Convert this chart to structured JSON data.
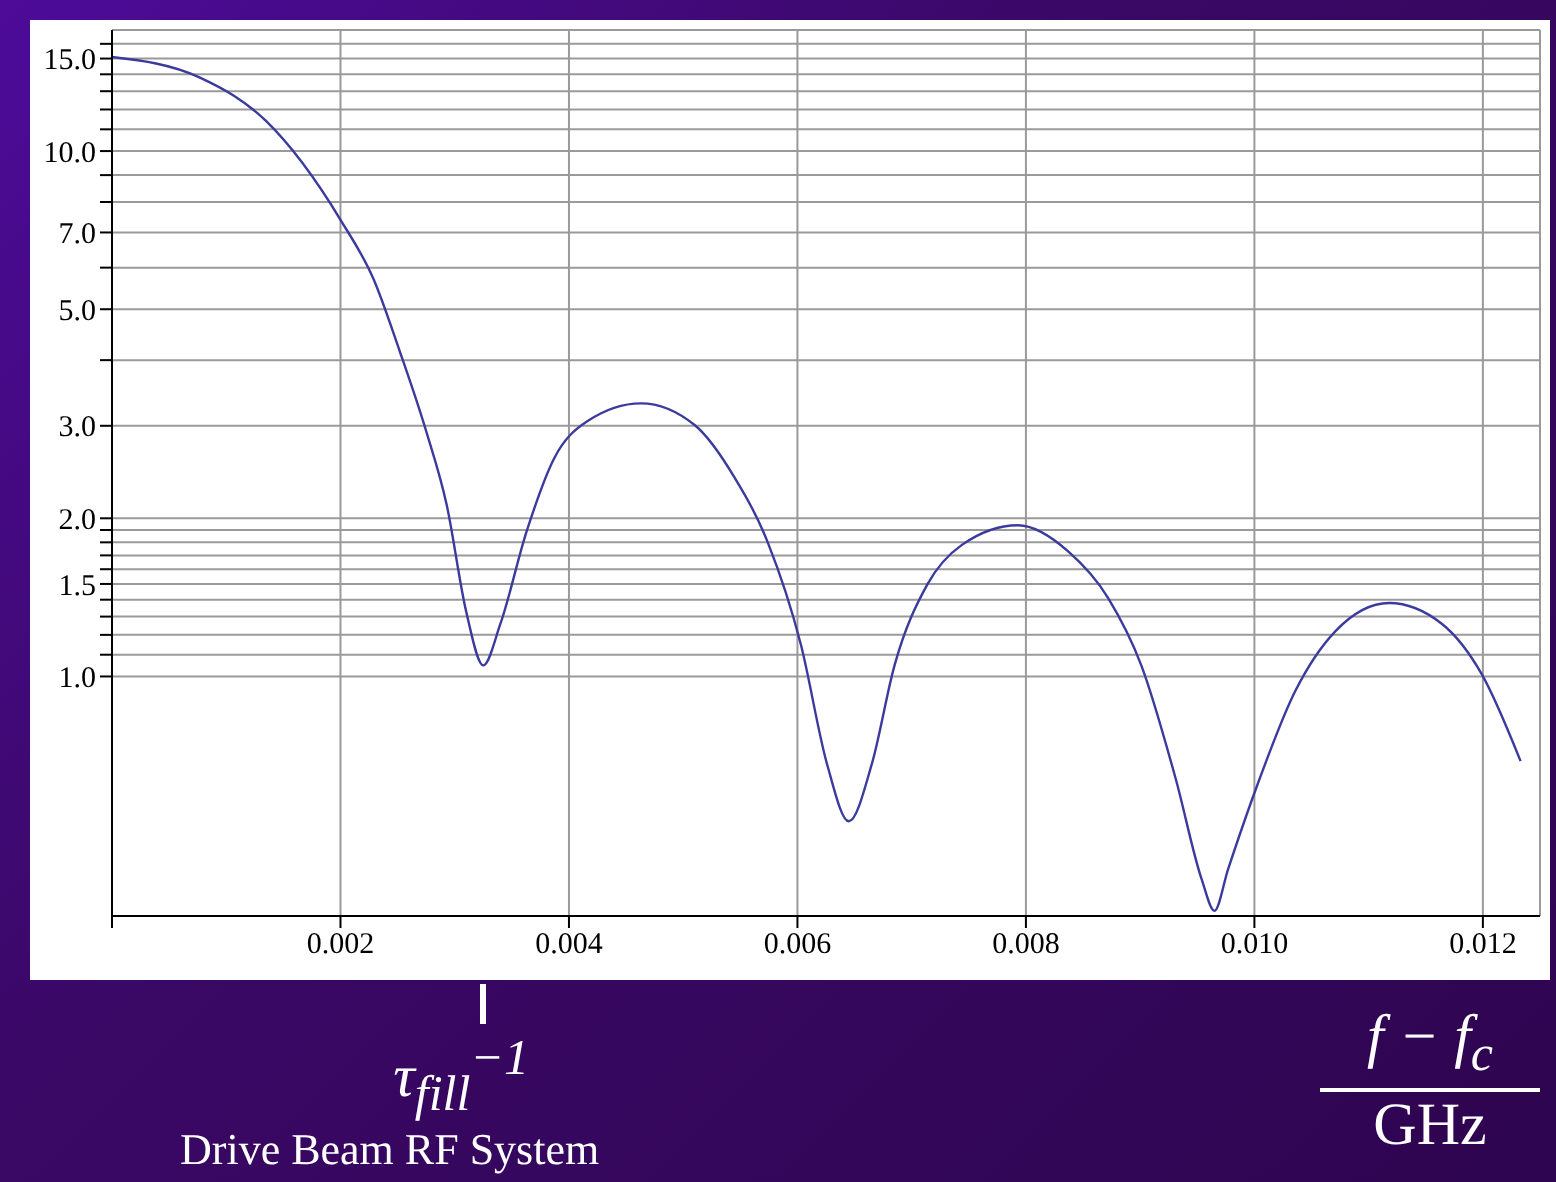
{
  "chart_data": {
    "type": "line",
    "xlabel": "f − f$_{c}$ GHz",
    "log": "y",
    "grid": true,
    "marker": "none",
    "line_style": "solid",
    "x": [
      0,
      0.00077,
      0.00135,
      0.002,
      0.00229,
      0.00252,
      0.00275,
      0.00293,
      0.0031,
      0.00325,
      0.0034,
      0.00363,
      0.00387,
      0.00416,
      0.00463,
      0.0051,
      0.00545,
      0.00574,
      0.00603,
      0.00626,
      0.00645,
      0.00665,
      0.00685,
      0.00714,
      0.00744,
      0.00793,
      0.00837,
      0.00872,
      0.00901,
      0.00931,
      0.00954,
      0.00965,
      0.00977,
      0.01,
      0.01036,
      0.01071,
      0.01118,
      0.01164,
      0.01199,
      0.01233
    ],
    "series": [
      {
        "color": "#3b3b9e",
        "values": [
          15.1,
          13.8,
          11.4,
          7.4,
          5.7,
          4.15,
          2.93,
          2.12,
          1.33,
          1.05,
          1.26,
          1.89,
          2.6,
          3.06,
          3.31,
          3.01,
          2.39,
          1.8,
          1.15,
          0.68,
          0.53,
          0.68,
          1.05,
          1.5,
          1.78,
          1.94,
          1.73,
          1.41,
          1.05,
          0.64,
          0.41,
          0.358,
          0.43,
          0.6,
          0.94,
          1.22,
          1.38,
          1.26,
          1.01,
          0.69
        ]
      }
    ],
    "xlim": [
      0,
      0.0125
    ],
    "xticks": [
      {
        "value": 0,
        "label": null
      },
      0.002,
      0.004,
      0.006,
      0.008,
      {
        "value": 0.01,
        "label": "0.010"
      },
      0.012
    ],
    "ylim": [
      0.35,
      17
    ],
    "yticks": [
      {
        "value": 1,
        "label": "1.0"
      },
      {
        "value": 1.1,
        "label": null
      },
      {
        "value": 1.2,
        "label": null
      },
      {
        "value": 1.3,
        "label": null
      },
      {
        "value": 1.4,
        "label": null
      },
      {
        "value": 1.5,
        "label": "1.5"
      },
      {
        "value": 1.6,
        "label": null
      },
      {
        "value": 1.7,
        "label": null
      },
      {
        "value": 1.8,
        "label": null
      },
      {
        "value": 1.9,
        "label": null
      },
      {
        "value": 2,
        "label": "2.0"
      },
      {
        "value": 3,
        "label": "3.0"
      },
      {
        "value": 4,
        "label": null
      },
      {
        "value": 5,
        "label": "5.0"
      },
      {
        "value": 6,
        "label": null
      },
      {
        "value": 7,
        "label": "7.0"
      },
      {
        "value": 8,
        "label": null
      },
      {
        "value": 9,
        "label": null
      },
      {
        "value": 10,
        "label": "10.0"
      },
      {
        "value": 11,
        "label": null
      },
      {
        "value": 12,
        "label": null
      },
      {
        "value": 13,
        "label": null
      },
      {
        "value": 14,
        "label": null
      },
      {
        "value": 15,
        "label": "15.0"
      },
      {
        "value": 16,
        "label": null
      }
    ],
    "annotations": [
      "τ$_{fill}$$^{−1}$",
      "Drive Beam RF System"
    ]
  }
}
